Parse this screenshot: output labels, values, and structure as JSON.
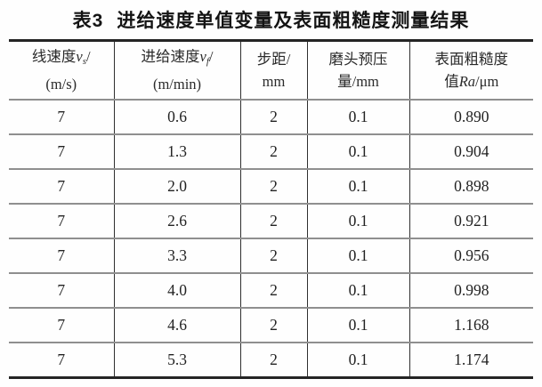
{
  "caption": {
    "label": "表3",
    "text": "进给速度单值变量及表面粗糙度测量结果"
  },
  "table": {
    "headers": {
      "col1": {
        "main": "线速度",
        "var": "v",
        "sub": "s",
        "slash": "/",
        "unit": "(m/s)"
      },
      "col2": {
        "main": "进给速度",
        "var": "v",
        "sub": "f",
        "slash": "/",
        "unit": "(m/min)"
      },
      "col3": {
        "main": "步距/",
        "unit": "mm"
      },
      "col4": {
        "main": "磨头预压",
        "unit": "量/mm"
      },
      "col5": {
        "main": "表面粗糙度",
        "prefix": "值",
        "var": "Ra",
        "suffix": "/μm"
      }
    },
    "rows": [
      [
        "7",
        "0.6",
        "2",
        "0.1",
        "0.890"
      ],
      [
        "7",
        "1.3",
        "2",
        "0.1",
        "0.904"
      ],
      [
        "7",
        "2.0",
        "2",
        "0.1",
        "0.898"
      ],
      [
        "7",
        "2.6",
        "2",
        "0.1",
        "0.921"
      ],
      [
        "7",
        "3.3",
        "2",
        "0.1",
        "0.956"
      ],
      [
        "7",
        "4.0",
        "2",
        "0.1",
        "0.998"
      ],
      [
        "7",
        "4.6",
        "2",
        "0.1",
        "1.168"
      ],
      [
        "7",
        "5.3",
        "2",
        "0.1",
        "1.174"
      ]
    ]
  },
  "colors": {
    "page_background": "#fefefe",
    "text": "#222222",
    "outer_border": "#242424",
    "row_separator": "#8f8f8f",
    "column_separator": "#2f2f2f"
  }
}
